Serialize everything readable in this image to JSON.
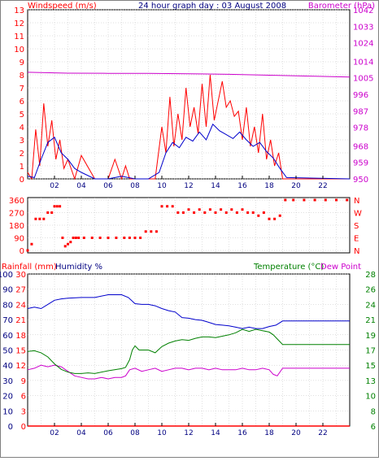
{
  "colors": {
    "wind": "#ff0000",
    "barometer": "#cc00cc",
    "avg_wind": "#0000cc",
    "direction": "#ff0000",
    "temperature": "#008000",
    "dew_point": "#0000cc",
    "humidity": "#cc00cc",
    "rainfall": "#ff0000",
    "grid": "#c0c0c0",
    "axis_text_dark": "#000080"
  },
  "chart_data": [
    {
      "type": "line",
      "title": "24 hour graph day : 03 August 2008",
      "ylabel_left": "Windspeed (m/s)",
      "ylabel_right": "Barometer (hPa)",
      "xlim": [
        0,
        24
      ],
      "x_ticks": [
        "02",
        "04",
        "06",
        "08",
        "10",
        "12",
        "14",
        "16",
        "18",
        "20",
        "22"
      ],
      "ylim_left": [
        0,
        13
      ],
      "ylim_right": [
        950,
        1042
      ],
      "y_ticks_left": [
        "0",
        "1",
        "2",
        "3",
        "4",
        "5",
        "6",
        "7",
        "8",
        "9",
        "10",
        "11",
        "12",
        "13"
      ],
      "y_ticks_right": [
        "950",
        "959",
        "968",
        "978",
        "987",
        "996",
        "1005",
        "1014",
        "1024",
        "1033",
        "1042"
      ],
      "grid": true,
      "series": [
        {
          "key": "gust",
          "x": [
            0,
            0.3,
            0.6,
            0.9,
            1.2,
            1.5,
            1.8,
            2.1,
            2.4,
            2.7,
            3.0,
            3.5,
            4.0,
            5.0,
            6.0,
            6.5,
            7.0,
            7.3,
            7.6,
            8.0,
            9.0,
            9.5,
            10.0,
            10.3,
            10.6,
            10.9,
            11.2,
            11.5,
            11.8,
            12.1,
            12.4,
            12.7,
            13.0,
            13.3,
            13.6,
            13.9,
            14.2,
            14.5,
            14.8,
            15.1,
            15.4,
            15.7,
            16.0,
            16.3,
            16.6,
            16.9,
            17.2,
            17.5,
            17.8,
            18.1,
            18.4,
            18.7,
            19.0,
            19.5,
            24
          ],
          "y": [
            0.5,
            0,
            3.8,
            1.0,
            5.8,
            2.5,
            4.5,
            1.5,
            3.0,
            0.8,
            1.5,
            0,
            1.8,
            0,
            0,
            1.5,
            0,
            1.0,
            0,
            0,
            0,
            0,
            4.0,
            2.0,
            6.3,
            2.5,
            5.0,
            3.0,
            7.0,
            4.0,
            5.5,
            3.5,
            7.3,
            4.0,
            8.0,
            4.5,
            6.0,
            7.5,
            5.5,
            6.0,
            4.8,
            5.2,
            3.0,
            5.5,
            2.5,
            4.0,
            2.0,
            5.0,
            1.5,
            3.0,
            1.0,
            2.0,
            0,
            0,
            0
          ]
        },
        {
          "key": "avg_wind",
          "x": [
            0,
            0.5,
            1.0,
            1.5,
            2.0,
            2.5,
            3.0,
            3.5,
            4.0,
            5.0,
            6.0,
            7.0,
            8.0,
            9.0,
            9.8,
            10.3,
            10.8,
            11.3,
            11.8,
            12.3,
            12.8,
            13.3,
            13.8,
            14.3,
            14.8,
            15.3,
            15.8,
            16.3,
            16.8,
            17.3,
            17.8,
            18.3,
            18.8,
            19.3,
            24
          ],
          "y": [
            0.2,
            0.1,
            1.5,
            2.8,
            3.2,
            2.0,
            1.5,
            0.8,
            0.5,
            0,
            0,
            0.2,
            0,
            0,
            0.5,
            2.0,
            2.8,
            2.4,
            3.2,
            2.9,
            3.6,
            3.0,
            4.2,
            3.7,
            3.4,
            3.1,
            3.6,
            3.0,
            2.5,
            2.8,
            2.1,
            1.6,
            0.8,
            0.1,
            0
          ]
        },
        {
          "key": "barometer",
          "x": [
            0,
            3,
            6,
            9,
            12,
            15,
            18,
            21,
            24
          ],
          "y": [
            1008,
            1007.5,
            1007.4,
            1007.4,
            1007.2,
            1006.9,
            1006.4,
            1005.9,
            1005.4
          ]
        }
      ]
    },
    {
      "type": "scatter",
      "ylim": [
        0,
        360
      ],
      "y_ticks_left": [
        "0",
        "90",
        "180",
        "270",
        "360"
      ],
      "y_ticks_right": [
        "N",
        "E",
        "S",
        "W",
        "N"
      ],
      "x_ticks": [
        "02",
        "04",
        "06",
        "08",
        "10",
        "12",
        "14",
        "16",
        "18",
        "20",
        "22"
      ],
      "xlim": [
        0,
        24
      ],
      "series": [
        {
          "key": "direction",
          "x": [
            0,
            0.3,
            0.6,
            0.9,
            1.2,
            1.5,
            1.8,
            2.0,
            2.2,
            2.4,
            2.6,
            2.8,
            3.0,
            3.2,
            3.4,
            3.6,
            3.8,
            4.2,
            4.8,
            5.4,
            6.0,
            6.6,
            7.2,
            7.6,
            8.0,
            8.4,
            8.8,
            9.2,
            9.6,
            10.0,
            10.4,
            10.8,
            11.2,
            11.6,
            12.0,
            12.4,
            12.8,
            13.2,
            13.6,
            14.0,
            14.4,
            14.8,
            15.2,
            15.6,
            16.0,
            16.4,
            16.8,
            17.2,
            17.6,
            18.0,
            18.4,
            18.8,
            19.2,
            19.8,
            20.6,
            21.4,
            22.2,
            23.0,
            23.8
          ],
          "y": [
            0,
            45,
            225,
            225,
            225,
            270,
            270,
            315,
            315,
            315,
            90,
            30,
            45,
            60,
            90,
            90,
            90,
            90,
            90,
            90,
            90,
            90,
            90,
            90,
            90,
            90,
            135,
            135,
            135,
            315,
            315,
            315,
            270,
            270,
            292,
            270,
            292,
            270,
            292,
            270,
            292,
            270,
            292,
            270,
            292,
            270,
            270,
            248,
            270,
            225,
            225,
            248,
            360,
            360,
            360,
            360,
            360,
            360,
            360
          ]
        }
      ]
    },
    {
      "type": "line",
      "ylabel_left_1": "Rainfall (mm)",
      "ylabel_left_2": "Humidity %",
      "ylabel_right_1": "Temperature (°C)",
      "ylabel_right_2": "Dew Point",
      "xlim": [
        0,
        24
      ],
      "x_ticks": [
        "02",
        "04",
        "06",
        "08",
        "10",
        "12",
        "14",
        "16",
        "18",
        "20",
        "22"
      ],
      "y_ticks_humidity": [
        "0",
        "10",
        "20",
        "30",
        "40",
        "50",
        "60",
        "70",
        "80",
        "90",
        "100"
      ],
      "y_ticks_rainfall": [
        "0",
        "3",
        "6",
        "9",
        "12",
        "15",
        "18",
        "21",
        "24",
        "27",
        "30"
      ],
      "y_ticks_temperature": [
        "6",
        "8",
        "10",
        "13",
        "15",
        "17",
        "19",
        "21",
        "24",
        "26",
        "28"
      ],
      "ylim_temperature": [
        6,
        28
      ],
      "series": [
        {
          "key": "temperature",
          "x": [
            0,
            0.5,
            1.0,
            1.5,
            2.0,
            2.5,
            3.0,
            3.5,
            4.0,
            4.5,
            5.0,
            6.0,
            7.0,
            7.3,
            7.6,
            7.8,
            8.0,
            8.3,
            8.6,
            9.0,
            9.5,
            10.0,
            10.5,
            11.0,
            11.5,
            12.0,
            12.5,
            13.0,
            13.5,
            14.0,
            14.5,
            15.0,
            15.5,
            16.0,
            16.5,
            17.0,
            17.5,
            18.0,
            18.3,
            18.6,
            19.0,
            24
          ],
          "y": [
            16.8,
            16.9,
            16.6,
            16.0,
            15.0,
            14.2,
            13.8,
            13.6,
            13.6,
            13.7,
            13.6,
            14.0,
            14.3,
            14.5,
            15.6,
            17.0,
            17.6,
            17.0,
            17.0,
            17.0,
            16.6,
            17.5,
            18.0,
            18.3,
            18.5,
            18.4,
            18.7,
            18.9,
            18.9,
            18.8,
            19.0,
            19.2,
            19.5,
            20.0,
            19.7,
            20.0,
            19.8,
            19.6,
            19.2,
            18.6,
            17.8,
            17.8
          ]
        },
        {
          "key": "dew_point",
          "x": [
            0,
            0.5,
            1.0,
            1.5,
            2.0,
            2.5,
            3.0,
            4.0,
            5.0,
            6.0,
            7.0,
            7.5,
            8.0,
            8.5,
            9.0,
            9.5,
            10.0,
            10.5,
            11.0,
            11.5,
            12.0,
            12.5,
            13.0,
            13.5,
            14.0,
            14.5,
            15.0,
            15.5,
            16.0,
            16.5,
            17.0,
            17.5,
            18.0,
            18.5,
            19.0,
            24
          ],
          "y": [
            23.0,
            23.2,
            23.0,
            23.6,
            24.2,
            24.4,
            24.5,
            24.6,
            24.6,
            25.0,
            25.0,
            24.6,
            23.7,
            23.6,
            23.6,
            23.4,
            23.0,
            22.7,
            22.5,
            21.7,
            21.6,
            21.4,
            21.3,
            21.0,
            20.7,
            20.6,
            20.5,
            20.3,
            20.1,
            20.3,
            20.1,
            20.1,
            20.4,
            20.6,
            21.2,
            21.2
          ]
        },
        {
          "key": "humidity",
          "x": [
            0,
            0.5,
            1.0,
            1.5,
            2.0,
            2.5,
            3.0,
            3.5,
            4.0,
            4.5,
            5.0,
            5.5,
            6.0,
            6.5,
            7.0,
            7.3,
            7.6,
            8.0,
            8.5,
            9.0,
            9.5,
            10.0,
            10.5,
            11.0,
            11.5,
            12.0,
            12.5,
            13.0,
            13.5,
            14.0,
            14.5,
            15.0,
            15.5,
            16.0,
            16.5,
            17.0,
            17.5,
            18.0,
            18.3,
            18.6,
            19.0,
            24
          ],
          "y": [
            37,
            38,
            40,
            39,
            40,
            39,
            36,
            33,
            32,
            31,
            31,
            32,
            31,
            32,
            32,
            33,
            37,
            38,
            36,
            37,
            38,
            36,
            37,
            38,
            38,
            37,
            38,
            38,
            37,
            38,
            37,
            37,
            37,
            38,
            37,
            37,
            38,
            37,
            34,
            33,
            38,
            38
          ]
        },
        {
          "key": "rainfall",
          "x": [
            0,
            24
          ],
          "y": [
            0,
            0
          ]
        }
      ]
    }
  ]
}
